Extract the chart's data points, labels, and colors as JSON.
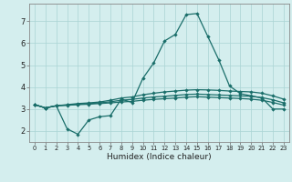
{
  "xlabel": "Humidex (Indice chaleur)",
  "xlim": [
    -0.5,
    23.5
  ],
  "ylim": [
    1.5,
    7.8
  ],
  "bg_color": "#d4eeee",
  "grid_color": "#aad4d4",
  "line_color": "#1a6e6a",
  "curve1_x": [
    0,
    1,
    2,
    3,
    4,
    5,
    6,
    7,
    8,
    9,
    10,
    11,
    12,
    13,
    14,
    15,
    16,
    17,
    18,
    19,
    20,
    21,
    22,
    23
  ],
  "curve1_y": [
    3.2,
    3.05,
    3.15,
    2.1,
    1.85,
    2.5,
    2.65,
    2.7,
    3.45,
    3.3,
    4.4,
    5.1,
    6.1,
    6.4,
    7.3,
    7.35,
    6.3,
    5.25,
    4.05,
    3.7,
    3.6,
    3.5,
    3.0,
    3.0
  ],
  "curve2_x": [
    0,
    1,
    2,
    3,
    4,
    5,
    6,
    7,
    8,
    9,
    10,
    11,
    12,
    13,
    14,
    15,
    16,
    17,
    18,
    19,
    20,
    21,
    22,
    23
  ],
  "curve2_y": [
    3.2,
    3.05,
    3.15,
    3.2,
    3.25,
    3.28,
    3.32,
    3.4,
    3.5,
    3.55,
    3.65,
    3.72,
    3.78,
    3.82,
    3.86,
    3.88,
    3.87,
    3.85,
    3.82,
    3.8,
    3.78,
    3.72,
    3.6,
    3.45
  ],
  "curve3_x": [
    0,
    1,
    2,
    3,
    4,
    5,
    6,
    7,
    8,
    9,
    10,
    11,
    12,
    13,
    14,
    15,
    16,
    17,
    18,
    19,
    20,
    21,
    22,
    23
  ],
  "curve3_y": [
    3.2,
    3.05,
    3.15,
    3.18,
    3.22,
    3.25,
    3.28,
    3.33,
    3.4,
    3.44,
    3.5,
    3.55,
    3.58,
    3.62,
    3.66,
    3.68,
    3.66,
    3.64,
    3.62,
    3.6,
    3.58,
    3.52,
    3.42,
    3.28
  ],
  "curve4_x": [
    0,
    1,
    2,
    3,
    4,
    5,
    6,
    7,
    8,
    9,
    10,
    11,
    12,
    13,
    14,
    15,
    16,
    17,
    18,
    19,
    20,
    21,
    22,
    23
  ],
  "curve4_y": [
    3.2,
    3.05,
    3.15,
    3.17,
    3.2,
    3.22,
    3.25,
    3.28,
    3.32,
    3.35,
    3.4,
    3.44,
    3.47,
    3.5,
    3.54,
    3.56,
    3.54,
    3.52,
    3.5,
    3.48,
    3.45,
    3.4,
    3.3,
    3.18
  ]
}
